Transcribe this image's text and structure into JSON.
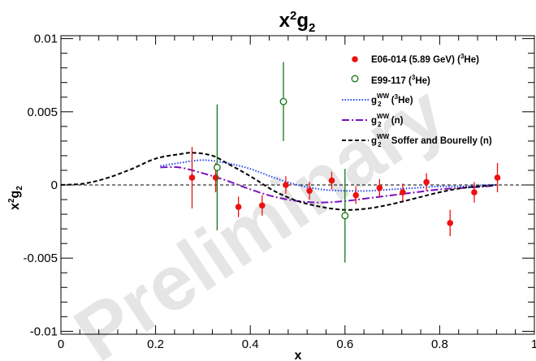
{
  "chart_data": {
    "type": "scatter",
    "title": "x²g₂",
    "xlabel": "x",
    "ylabel": "x²g₂",
    "xlim": [
      0,
      1
    ],
    "ylim": [
      -0.0102,
      0.0102
    ],
    "x_ticks": [
      0,
      0.2,
      0.4,
      0.6,
      0.8,
      1
    ],
    "x_tick_labels": [
      "0",
      "0.2",
      "0.4",
      "0.6",
      "0.8",
      "1"
    ],
    "y_ticks": [
      -0.01,
      -0.005,
      0,
      0.005,
      0.01
    ],
    "y_tick_labels": [
      "-0.01",
      "-0.005",
      "0",
      "0.005",
      "0.01"
    ],
    "zero_line": true,
    "grid": false,
    "legend_position": "top-right",
    "watermark": "Preliminary",
    "series": [
      {
        "name": "E06-014 (5.89 GeV) (3He)",
        "kind": "points",
        "marker": "filled-circle",
        "color": "#ee1111",
        "points": [
          {
            "x": 0.277,
            "y": 0.0005,
            "err": 0.0021
          },
          {
            "x": 0.327,
            "y": 0.0005,
            "err": 0.001
          },
          {
            "x": 0.375,
            "y": -0.0015,
            "err": 0.0007
          },
          {
            "x": 0.425,
            "y": -0.0014,
            "err": 0.0007
          },
          {
            "x": 0.475,
            "y": 0.0,
            "err": 0.0006
          },
          {
            "x": 0.525,
            "y": -0.0004,
            "err": 0.0006
          },
          {
            "x": 0.572,
            "y": 0.0003,
            "err": 0.0006
          },
          {
            "x": 0.623,
            "y": -0.0007,
            "err": 0.0006
          },
          {
            "x": 0.673,
            "y": -0.0002,
            "err": 0.0006
          },
          {
            "x": 0.722,
            "y": -0.0005,
            "err": 0.0006
          },
          {
            "x": 0.772,
            "y": 0.0002,
            "err": 0.0006
          },
          {
            "x": 0.822,
            "y": -0.0026,
            "err": 0.0009
          },
          {
            "x": 0.873,
            "y": -0.0005,
            "err": 0.0007
          },
          {
            "x": 0.922,
            "y": 0.0005,
            "err": 0.001
          }
        ]
      },
      {
        "name": "E99-117 (3He)",
        "kind": "points",
        "marker": "open-circle",
        "color": "#117711",
        "points": [
          {
            "x": 0.33,
            "y": 0.0012,
            "err": 0.0043
          },
          {
            "x": 0.47,
            "y": 0.0057,
            "err": 0.0027
          },
          {
            "x": 0.6,
            "y": -0.0021,
            "err": 0.0032
          }
        ]
      },
      {
        "name": "gWW (3He)",
        "kind": "curve",
        "style": "dotted",
        "color": "#2244ee",
        "x": [
          0.21,
          0.25,
          0.3,
          0.35,
          0.4,
          0.45,
          0.5,
          0.55,
          0.6,
          0.65,
          0.7,
          0.75,
          0.8,
          0.85,
          0.9,
          0.92
        ],
        "y": [
          0.0013,
          0.0015,
          0.0017,
          0.0015,
          0.0011,
          0.0005,
          0.0,
          -0.0003,
          -0.0004,
          -0.0004,
          -0.0003,
          -0.0002,
          -0.0001,
          -0.0001,
          0.0,
          0.0
        ]
      },
      {
        "name": "gWW (n)",
        "kind": "curve",
        "style": "dash-dot",
        "color": "#7711bb",
        "x": [
          0.21,
          0.25,
          0.3,
          0.35,
          0.4,
          0.45,
          0.5,
          0.55,
          0.6,
          0.65,
          0.7,
          0.75,
          0.8,
          0.85,
          0.9,
          0.92
        ],
        "y": [
          0.0012,
          0.0012,
          0.0008,
          0.0003,
          -0.0003,
          -0.0008,
          -0.0011,
          -0.0012,
          -0.0011,
          -0.0009,
          -0.0007,
          -0.0005,
          -0.0003,
          -0.0002,
          -0.0001,
          0.0
        ]
      },
      {
        "name": "gWW Soffer and Bourelly (n)",
        "kind": "curve",
        "style": "dashed",
        "color": "#000000",
        "x": [
          0.0,
          0.05,
          0.1,
          0.15,
          0.2,
          0.25,
          0.28,
          0.32,
          0.35,
          0.4,
          0.45,
          0.5,
          0.55,
          0.6,
          0.65,
          0.7,
          0.75,
          0.8,
          0.85,
          0.92
        ],
        "y": [
          0.0,
          0.0001,
          0.0005,
          0.0011,
          0.0018,
          0.0021,
          0.0022,
          0.002,
          0.0015,
          0.0006,
          -0.0004,
          -0.0011,
          -0.0015,
          -0.0017,
          -0.0016,
          -0.0013,
          -0.0009,
          -0.0005,
          -0.0002,
          0.0
        ]
      }
    ]
  },
  "legend": [
    {
      "base": "E06-014 (5.89 GeV) (",
      "sup": "3",
      "rest": "He)",
      "sub": ""
    },
    {
      "base": "E99-117 (",
      "sup": "3",
      "rest": "He)",
      "sub": ""
    },
    {
      "base": "g",
      "sup": "WW",
      "sub": "2",
      "rest": " (",
      "sup2": "3",
      "rest2": "He)"
    },
    {
      "base": "g",
      "sup": "WW",
      "sub": "2",
      "rest": " (n)"
    },
    {
      "base": "g",
      "sup": "WW",
      "sub": "2",
      "rest": " Soffer and Bourelly (n)"
    }
  ],
  "title_parts": {
    "a": "x",
    "sup": "2",
    "b": "g",
    "sub": "2"
  },
  "xlabel_text": "x",
  "ylabel_parts": {
    "a": "x",
    "sup": "2",
    "b": "g",
    "sub": "2"
  }
}
